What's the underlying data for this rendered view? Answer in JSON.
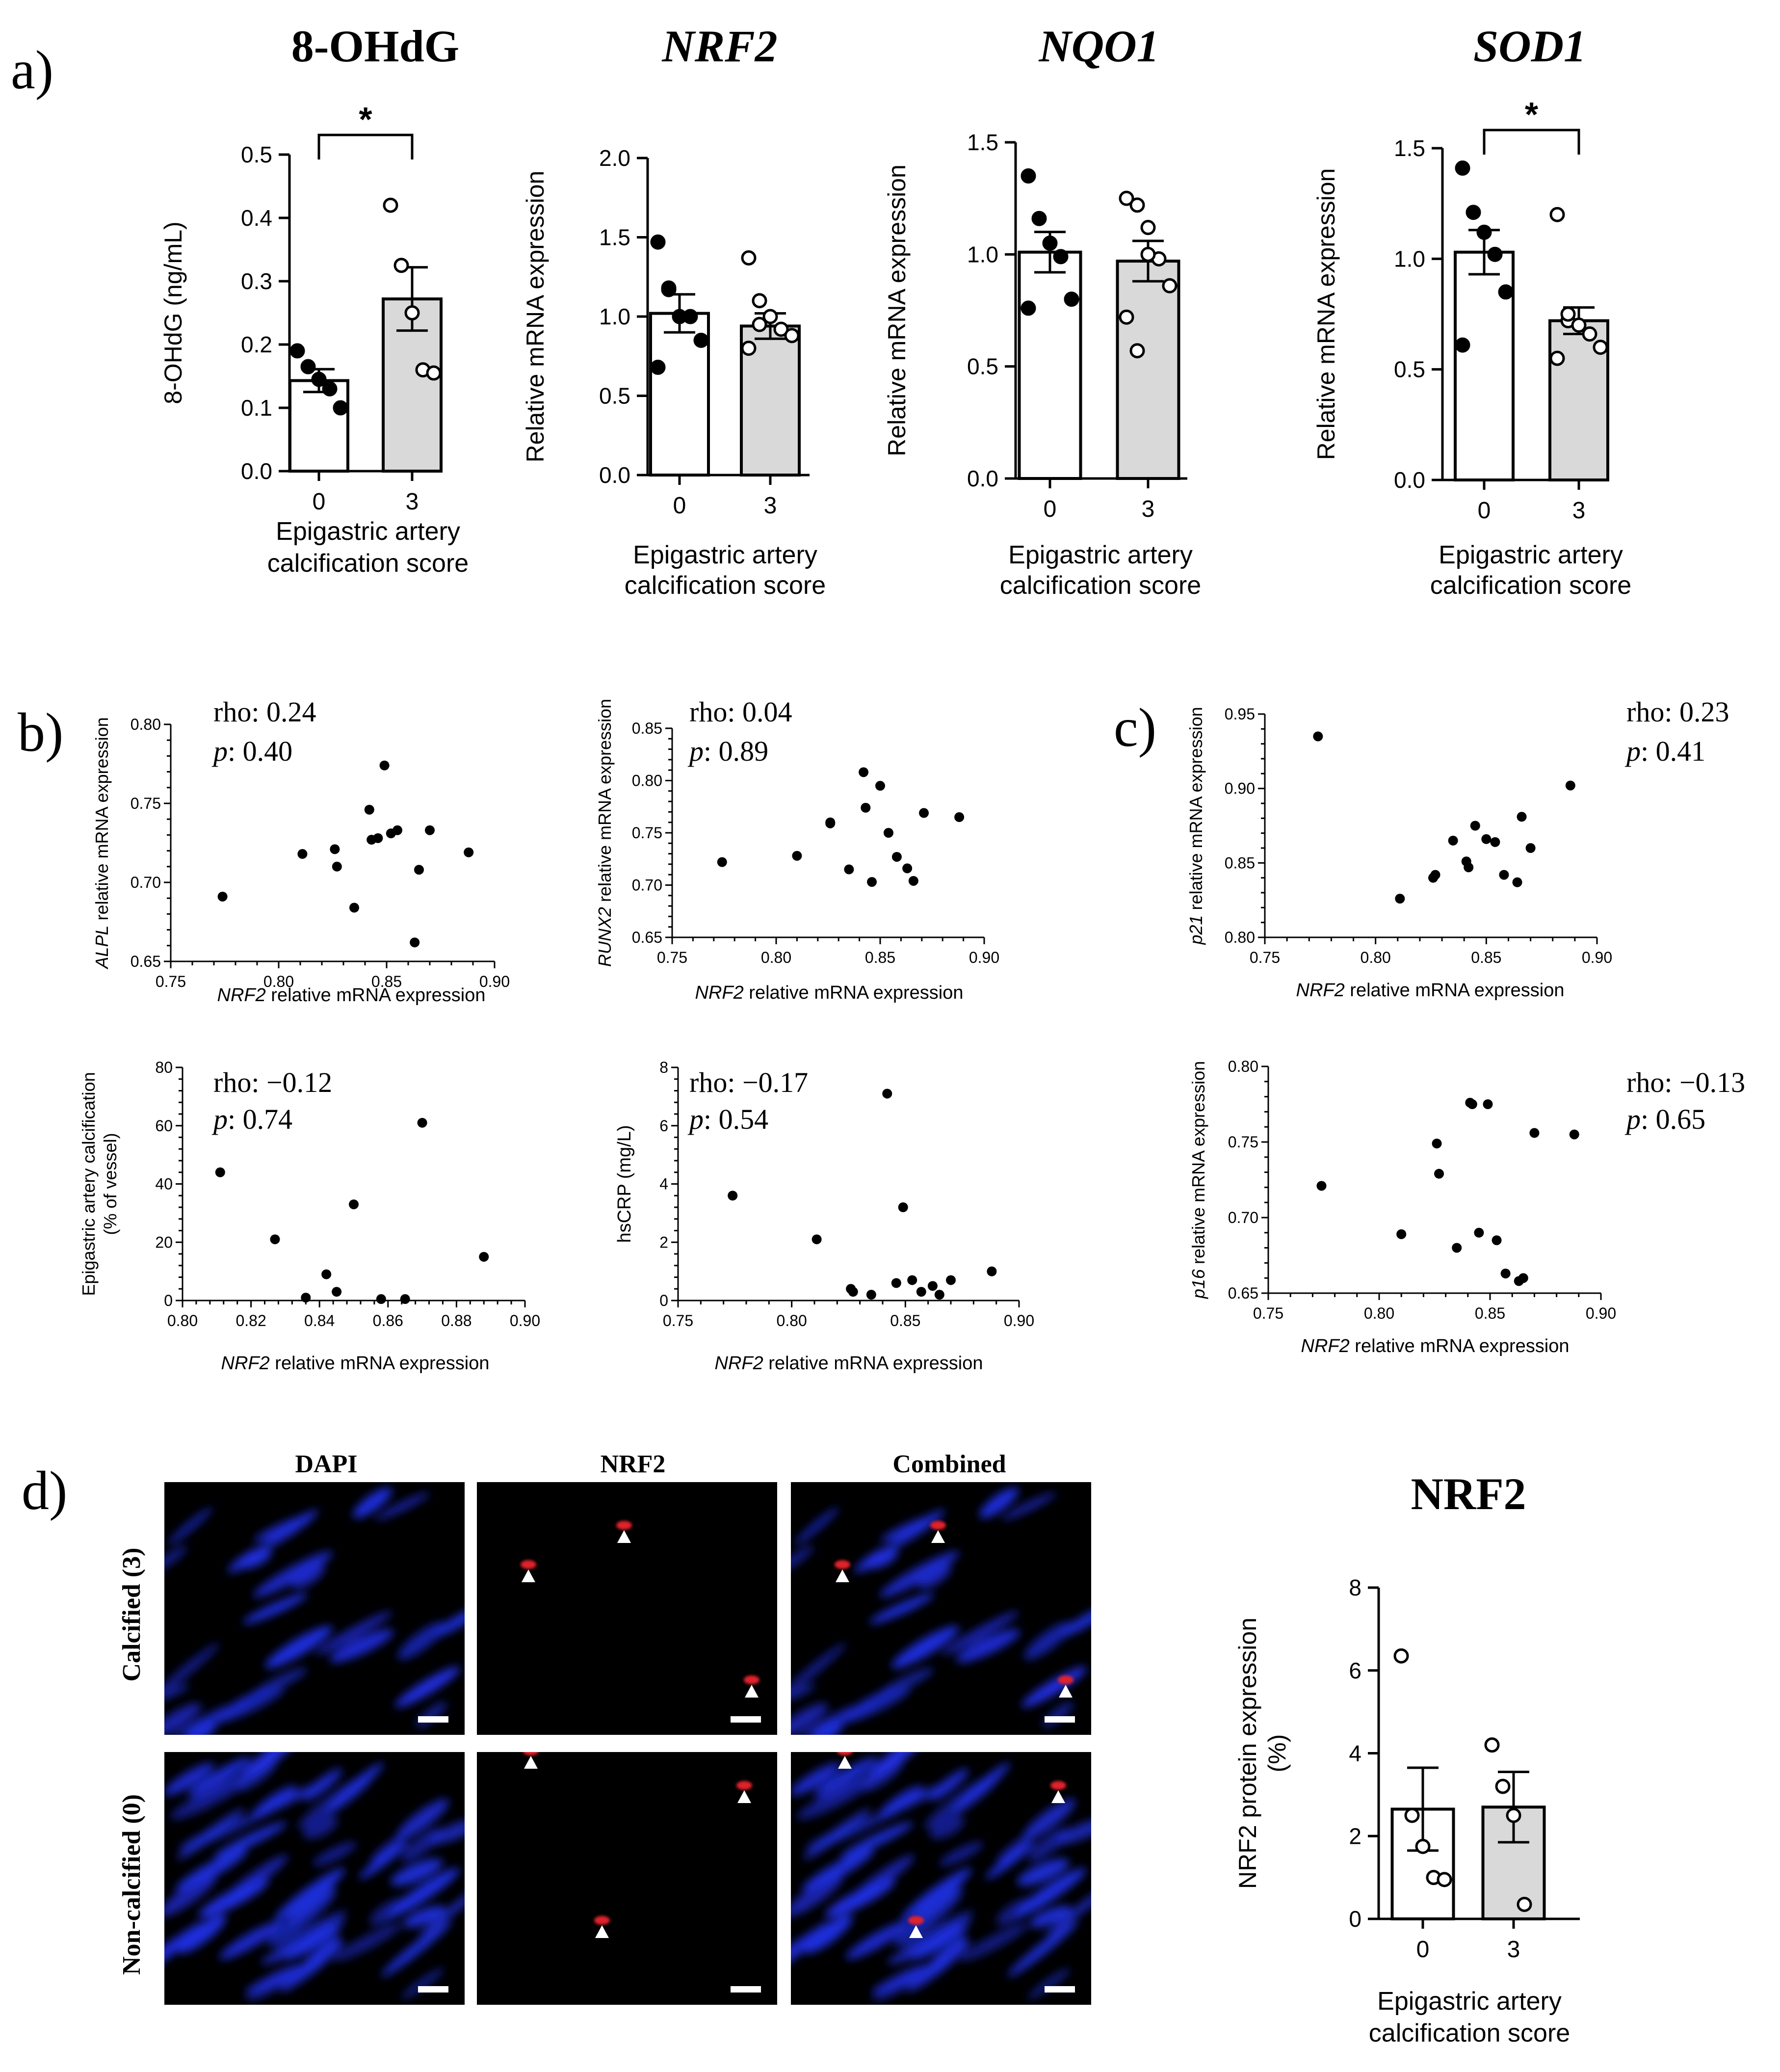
{
  "panel_labels": {
    "a": "a)",
    "b": "b)",
    "c": "c)",
    "d": "d)"
  },
  "common": {
    "x_label_line1": "Epigastric artery",
    "x_label_line2": "calcification score",
    "nrf2_xlabel_gene": "NRF2",
    "nrf2_xlabel_rest": " relative mRNA expression",
    "rho_prefix": "rho: ",
    "p_prefix": "p",
    "p_sep": ": "
  },
  "colors": {
    "bar_group0": "#ffffff",
    "bar_group3": "#d9d9d9",
    "axis": "#000000",
    "dapi_blue": "#1f2fe0",
    "nrf2_red": "#e0202a",
    "image_background": "#000000"
  },
  "chart_data": [
    {
      "id": "a1",
      "type": "bar",
      "title": "8-OHdG",
      "title_italic": false,
      "ylabel": "8-OHdG (ng/mL)",
      "categories": [
        "0",
        "3"
      ],
      "ylim": [
        0,
        0.5
      ],
      "yticks": [
        "0.0",
        "0.1",
        "0.2",
        "0.3",
        "0.4",
        "0.5"
      ],
      "means": [
        0.143,
        0.272
      ],
      "sem": [
        0.018,
        0.05
      ],
      "points": [
        [
          0.19,
          0.165,
          0.145,
          0.13,
          0.1
        ],
        [
          0.42,
          0.325,
          0.25,
          0.16,
          0.155
        ]
      ],
      "significance": "*"
    },
    {
      "id": "a2",
      "type": "bar",
      "title": "NRF2",
      "title_italic": true,
      "ylabel": "Relative mRNA expression",
      "categories": [
        "0",
        "3"
      ],
      "ylim": [
        0,
        2.0
      ],
      "yticks": [
        "0.0",
        "0.5",
        "1.0",
        "1.5",
        "2.0"
      ],
      "means": [
        1.02,
        0.94
      ],
      "sem": [
        0.12,
        0.08
      ],
      "points": [
        [
          1.47,
          1.17,
          1.0,
          1.0,
          0.85,
          0.68,
          1.18
        ],
        [
          1.37,
          1.1,
          1.0,
          0.92,
          0.88,
          0.8,
          0.95
        ]
      ],
      "significance": ""
    },
    {
      "id": "a3",
      "type": "bar",
      "title": "NQO1",
      "title_italic": true,
      "ylabel": "Relative mRNA expression",
      "categories": [
        "0",
        "3"
      ],
      "ylim": [
        0,
        1.5
      ],
      "yticks": [
        "0.0",
        "0.5",
        "1.0",
        "1.5"
      ],
      "means": [
        1.01,
        0.97
      ],
      "sem": [
        0.09,
        0.09
      ],
      "points": [
        [
          1.35,
          1.16,
          1.05,
          0.99,
          0.8,
          0.76
        ],
        [
          1.25,
          1.22,
          1.12,
          0.98,
          0.86,
          0.72,
          0.57,
          1.0
        ]
      ],
      "significance": ""
    },
    {
      "id": "a4",
      "type": "bar",
      "title": "SOD1",
      "title_italic": true,
      "ylabel": "Relative mRNA expression",
      "categories": [
        "0",
        "3"
      ],
      "ylim": [
        0,
        1.5
      ],
      "yticks": [
        "0.0",
        "0.5",
        "1.0",
        "1.5"
      ],
      "means": [
        1.03,
        0.72
      ],
      "sem": [
        0.1,
        0.06
      ],
      "points": [
        [
          1.41,
          1.21,
          1.12,
          1.02,
          0.85,
          0.61
        ],
        [
          1.2,
          0.72,
          0.7,
          0.66,
          0.6,
          0.55,
          0.75
        ]
      ],
      "significance": "*"
    },
    {
      "id": "b1",
      "type": "scatter",
      "ylabel_gene": "ALPL",
      "ylabel_rest": " relative mRNA expression",
      "xlim": [
        0.75,
        0.9
      ],
      "xticks": [
        "0.75",
        "0.80",
        "0.85",
        "0.90"
      ],
      "ylim": [
        0.65,
        0.8
      ],
      "yticks": [
        "0.65",
        "0.70",
        "0.75",
        "0.80"
      ],
      "rho": "0.24",
      "p": "0.40",
      "x": [
        0.774,
        0.811,
        0.826,
        0.827,
        0.835,
        0.842,
        0.843,
        0.846,
        0.849,
        0.852,
        0.855,
        0.863,
        0.865,
        0.87,
        0.888
      ],
      "y": [
        0.691,
        0.718,
        0.721,
        0.71,
        0.684,
        0.746,
        0.727,
        0.728,
        0.774,
        0.731,
        0.733,
        0.662,
        0.708,
        0.733,
        0.719
      ]
    },
    {
      "id": "b2",
      "type": "scatter",
      "ylabel_gene": "RUNX2",
      "ylabel_rest": " relative mRNA expression",
      "xlim": [
        0.75,
        0.9
      ],
      "xticks": [
        "0.75",
        "0.80",
        "0.85",
        "0.90"
      ],
      "ylim": [
        0.65,
        0.85
      ],
      "yticks": [
        "0.65",
        "0.70",
        "0.75",
        "0.80",
        "0.85"
      ],
      "rho": "0.04",
      "p": "0.89",
      "x": [
        0.774,
        0.81,
        0.826,
        0.826,
        0.835,
        0.842,
        0.843,
        0.846,
        0.85,
        0.854,
        0.858,
        0.863,
        0.866,
        0.871,
        0.888
      ],
      "y": [
        0.722,
        0.728,
        0.759,
        0.76,
        0.715,
        0.808,
        0.774,
        0.703,
        0.795,
        0.75,
        0.727,
        0.716,
        0.704,
        0.769,
        0.765
      ]
    },
    {
      "id": "b3",
      "type": "scatter",
      "ylabel_line1": "Epigastric artery calcification",
      "ylabel_line2": "(% of vessel)",
      "xlim": [
        0.8,
        0.9
      ],
      "xticks": [
        "0.80",
        "0.82",
        "0.84",
        "0.86",
        "0.88",
        "0.90"
      ],
      "ylim": [
        0,
        80
      ],
      "yticks": [
        "0",
        "20",
        "40",
        "60",
        "80"
      ],
      "rho": "−0.12",
      "p": "0.74",
      "x": [
        0.811,
        0.827,
        0.836,
        0.842,
        0.845,
        0.85,
        0.858,
        0.865,
        0.87,
        0.888
      ],
      "y": [
        44,
        21,
        1,
        9,
        3,
        33,
        0.5,
        0.5,
        61,
        15
      ]
    },
    {
      "id": "b4",
      "type": "scatter",
      "ylabel": "hsCRP (mg/L)",
      "xlim": [
        0.75,
        0.9
      ],
      "xticks": [
        "0.75",
        "0.80",
        "0.85",
        "0.90"
      ],
      "ylim": [
        0,
        8
      ],
      "yticks": [
        "0",
        "2",
        "4",
        "6",
        "8"
      ],
      "rho": "−0.17",
      "p": "0.54",
      "x": [
        0.774,
        0.811,
        0.826,
        0.827,
        0.835,
        0.842,
        0.846,
        0.849,
        0.853,
        0.857,
        0.862,
        0.865,
        0.87,
        0.888
      ],
      "y": [
        3.6,
        2.1,
        0.4,
        0.3,
        0.2,
        7.1,
        0.6,
        3.2,
        0.7,
        0.3,
        0.5,
        0.2,
        0.7,
        1.0
      ]
    },
    {
      "id": "c1",
      "type": "scatter",
      "ylabel_gene": "p21",
      "ylabel_rest": " relative mRNA expression",
      "xlim": [
        0.75,
        0.9
      ],
      "xticks": [
        "0.75",
        "0.80",
        "0.85",
        "0.90"
      ],
      "ylim": [
        0.8,
        0.95
      ],
      "yticks": [
        "0.80",
        "0.85",
        "0.90",
        "0.95"
      ],
      "rho": "0.23",
      "p": "0.41",
      "x": [
        0.774,
        0.811,
        0.826,
        0.827,
        0.835,
        0.841,
        0.842,
        0.845,
        0.85,
        0.854,
        0.858,
        0.864,
        0.866,
        0.87,
        0.888
      ],
      "y": [
        0.935,
        0.826,
        0.84,
        0.842,
        0.865,
        0.851,
        0.847,
        0.875,
        0.866,
        0.864,
        0.842,
        0.837,
        0.881,
        0.86,
        0.902
      ]
    },
    {
      "id": "c2",
      "type": "scatter",
      "ylabel_gene": "p16",
      "ylabel_rest": " relative mRNA expression",
      "xlim": [
        0.75,
        0.9
      ],
      "xticks": [
        "0.75",
        "0.80",
        "0.85",
        "0.90"
      ],
      "ylim": [
        0.65,
        0.8
      ],
      "yticks": [
        "0.65",
        "0.70",
        "0.75",
        "0.80"
      ],
      "rho": "−0.13",
      "p": "0.65",
      "x": [
        0.774,
        0.81,
        0.826,
        0.827,
        0.835,
        0.841,
        0.842,
        0.845,
        0.849,
        0.853,
        0.857,
        0.863,
        0.865,
        0.87,
        0.888
      ],
      "y": [
        0.721,
        0.689,
        0.749,
        0.729,
        0.68,
        0.776,
        0.775,
        0.69,
        0.775,
        0.685,
        0.663,
        0.658,
        0.66,
        0.756,
        0.755
      ]
    },
    {
      "id": "d",
      "type": "bar",
      "title": "NRF2",
      "title_italic": false,
      "ylabel_line1": "NRF2 protein expression",
      "ylabel_line2": "(%)",
      "categories": [
        "0",
        "3"
      ],
      "ylim": [
        0,
        8
      ],
      "yticks": [
        "0",
        "2",
        "4",
        "6",
        "8"
      ],
      "means": [
        2.65,
        2.7
      ],
      "sem": [
        1.0,
        0.85
      ],
      "points": [
        [
          6.35,
          2.5,
          1.75,
          1.0,
          0.95
        ],
        [
          4.2,
          3.2,
          2.5,
          0.35
        ]
      ],
      "significance": "",
      "filled_points": false
    }
  ],
  "micrographs": {
    "columns": [
      "DAPI",
      "NRF2",
      "Combined"
    ],
    "rows": [
      "Calcified (3)",
      "Non-calcified (0)"
    ]
  }
}
